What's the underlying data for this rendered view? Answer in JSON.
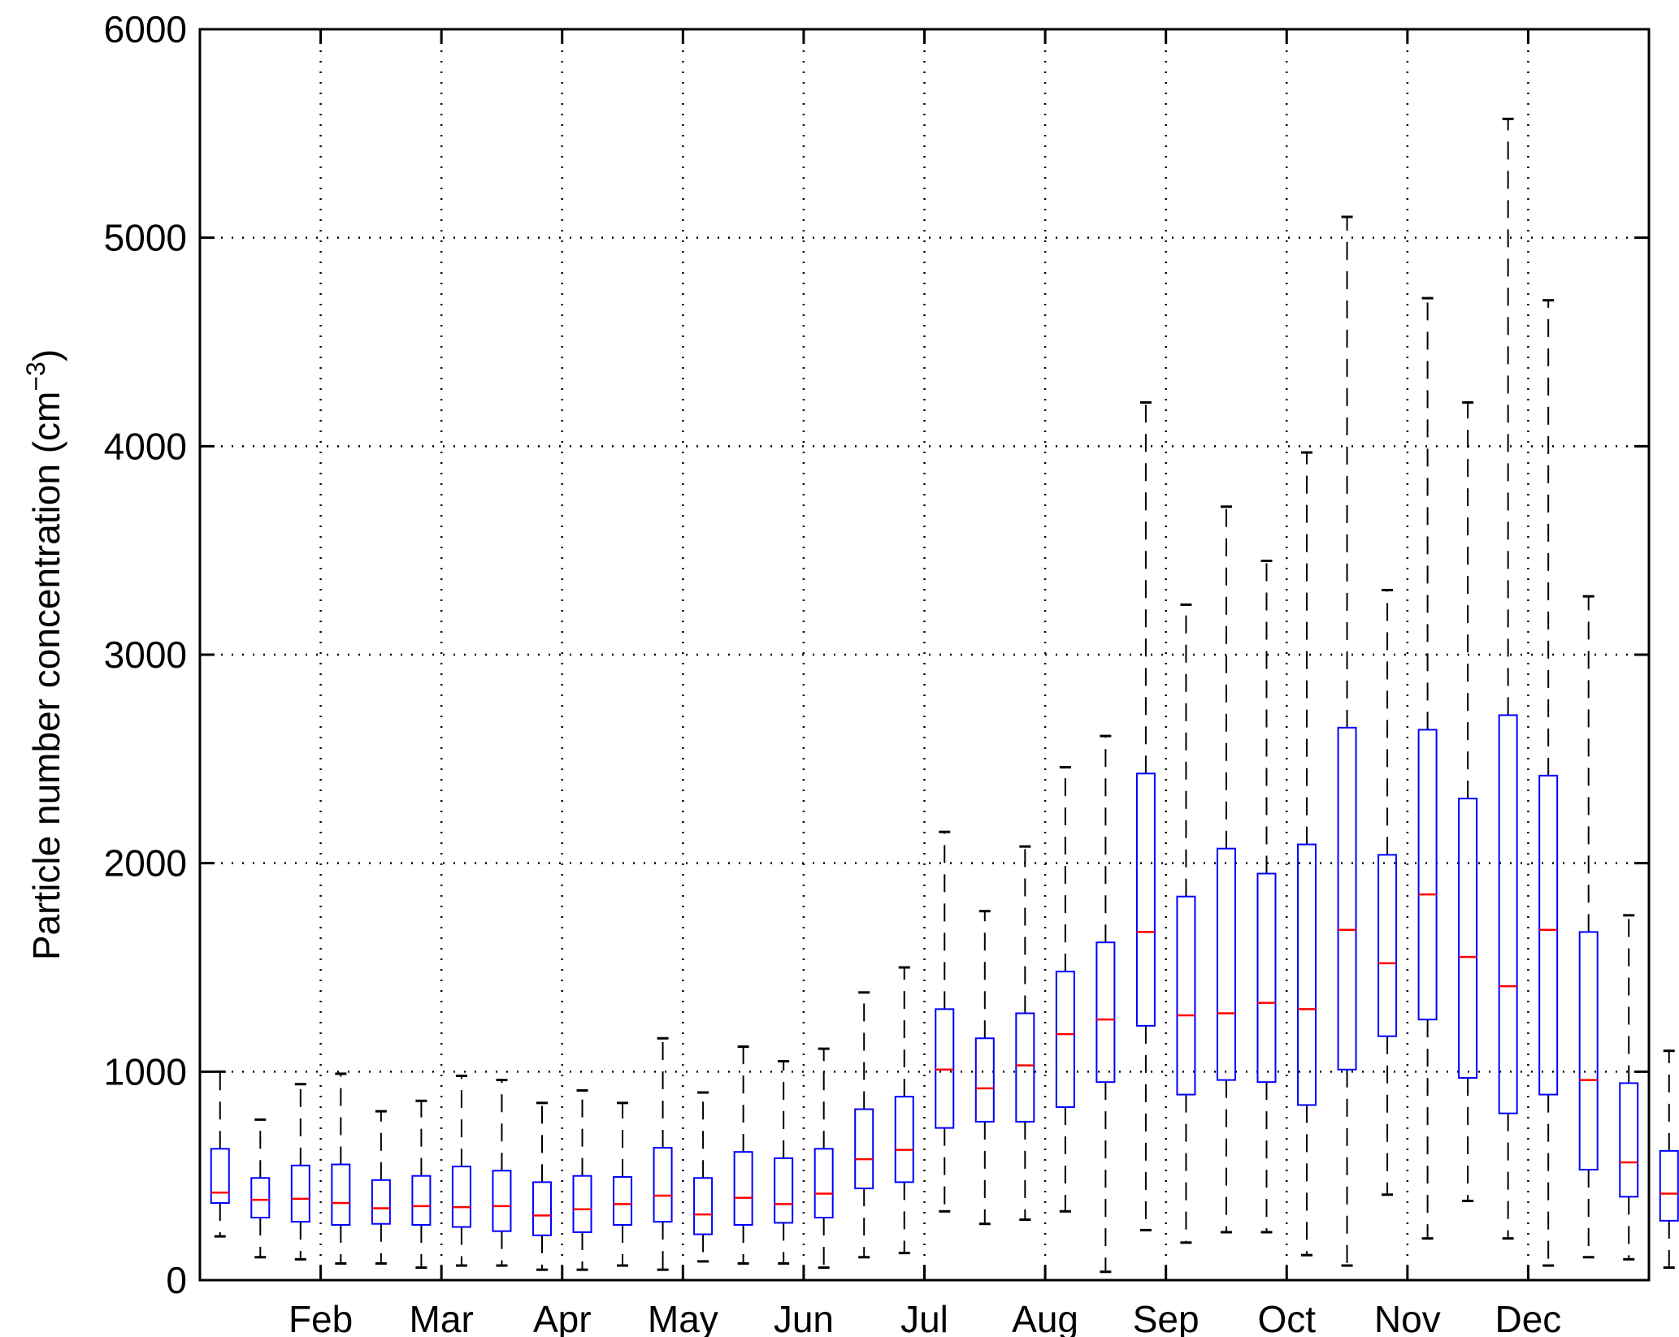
{
  "chart_data": {
    "type": "boxplot",
    "ylabel_main": "Particle number concentration (cm",
    "ylabel_sup": "−3",
    "ylabel_close": ")",
    "ylim": [
      0,
      6000
    ],
    "yticks": [
      0,
      1000,
      2000,
      3000,
      4000,
      5000,
      6000
    ],
    "month_labels": [
      {
        "label": "Feb",
        "x": 3.5
      },
      {
        "label": "Mar",
        "x": 6.5
      },
      {
        "label": "Apr",
        "x": 9.5
      },
      {
        "label": "May",
        "x": 12.5
      },
      {
        "label": "Jun",
        "x": 15.5
      },
      {
        "label": "Jul",
        "x": 18.5
      },
      {
        "label": "Aug",
        "x": 21.5
      },
      {
        "label": "Sep",
        "x": 24.5
      },
      {
        "label": "Oct",
        "x": 27.5
      },
      {
        "label": "Nov",
        "x": 30.5
      },
      {
        "label": "Dec",
        "x": 33.5
      }
    ],
    "xlim": [
      0.5,
      36.5
    ],
    "grid": true,
    "colors": {
      "box": "#0000ff",
      "median": "#ff0000",
      "whisker": "#000000",
      "grid": "#000000"
    },
    "boxes": [
      {
        "min": 210,
        "q1": 370,
        "median": 420,
        "q3": 630,
        "max": 1000
      },
      {
        "min": 110,
        "q1": 300,
        "median": 385,
        "q3": 490,
        "max": 770
      },
      {
        "min": 100,
        "q1": 280,
        "median": 390,
        "q3": 550,
        "max": 940
      },
      {
        "min": 80,
        "q1": 265,
        "median": 370,
        "q3": 555,
        "max": 990
      },
      {
        "min": 80,
        "q1": 270,
        "median": 345,
        "q3": 480,
        "max": 810
      },
      {
        "min": 60,
        "q1": 265,
        "median": 355,
        "q3": 500,
        "max": 860
      },
      {
        "min": 70,
        "q1": 255,
        "median": 350,
        "q3": 545,
        "max": 980
      },
      {
        "min": 70,
        "q1": 235,
        "median": 355,
        "q3": 525,
        "max": 960
      },
      {
        "min": 50,
        "q1": 215,
        "median": 310,
        "q3": 470,
        "max": 850
      },
      {
        "min": 50,
        "q1": 230,
        "median": 340,
        "q3": 500,
        "max": 910
      },
      {
        "min": 70,
        "q1": 265,
        "median": 365,
        "q3": 495,
        "max": 850
      },
      {
        "min": 50,
        "q1": 280,
        "median": 405,
        "q3": 635,
        "max": 1160
      },
      {
        "min": 90,
        "q1": 220,
        "median": 315,
        "q3": 490,
        "max": 900
      },
      {
        "min": 80,
        "q1": 265,
        "median": 395,
        "q3": 615,
        "max": 1120
      },
      {
        "min": 80,
        "q1": 275,
        "median": 365,
        "q3": 585,
        "max": 1050
      },
      {
        "min": 60,
        "q1": 300,
        "median": 415,
        "q3": 630,
        "max": 1110
      },
      {
        "min": 110,
        "q1": 440,
        "median": 580,
        "q3": 820,
        "max": 1380
      },
      {
        "min": 130,
        "q1": 470,
        "median": 625,
        "q3": 880,
        "max": 1500
      },
      {
        "min": 330,
        "q1": 730,
        "median": 1010,
        "q3": 1300,
        "max": 2150
      },
      {
        "min": 270,
        "q1": 760,
        "median": 920,
        "q3": 1160,
        "max": 1770
      },
      {
        "min": 290,
        "q1": 760,
        "median": 1030,
        "q3": 1280,
        "max": 2080
      },
      {
        "min": 330,
        "q1": 830,
        "median": 1180,
        "q3": 1480,
        "max": 2460
      },
      {
        "min": 40,
        "q1": 950,
        "median": 1250,
        "q3": 1620,
        "max": 2610
      },
      {
        "min": 240,
        "q1": 1220,
        "median": 1670,
        "q3": 2430,
        "max": 4210
      },
      {
        "min": 180,
        "q1": 890,
        "median": 1270,
        "q3": 1840,
        "max": 3240
      },
      {
        "min": 230,
        "q1": 960,
        "median": 1280,
        "q3": 2070,
        "max": 3710
      },
      {
        "min": 230,
        "q1": 950,
        "median": 1330,
        "q3": 1950,
        "max": 3450
      },
      {
        "min": 120,
        "q1": 840,
        "median": 1300,
        "q3": 2090,
        "max": 3970
      },
      {
        "min": 70,
        "q1": 1010,
        "median": 1680,
        "q3": 2650,
        "max": 5100
      },
      {
        "min": 410,
        "q1": 1170,
        "median": 1520,
        "q3": 2040,
        "max": 3310
      },
      {
        "min": 200,
        "q1": 1250,
        "median": 1850,
        "q3": 2640,
        "max": 4710
      },
      {
        "min": 380,
        "q1": 970,
        "median": 1550,
        "q3": 2310,
        "max": 4210
      },
      {
        "min": 200,
        "q1": 800,
        "median": 1410,
        "q3": 2710,
        "max": 5570
      },
      {
        "min": 70,
        "q1": 890,
        "median": 1680,
        "q3": 2420,
        "max": 4700
      },
      {
        "min": 110,
        "q1": 530,
        "median": 960,
        "q3": 1670,
        "max": 3280
      },
      {
        "min": 100,
        "q1": 400,
        "median": 565,
        "q3": 945,
        "max": 1750
      },
      {
        "min": 60,
        "q1": 285,
        "median": 415,
        "q3": 620,
        "max": 1100
      }
    ]
  }
}
